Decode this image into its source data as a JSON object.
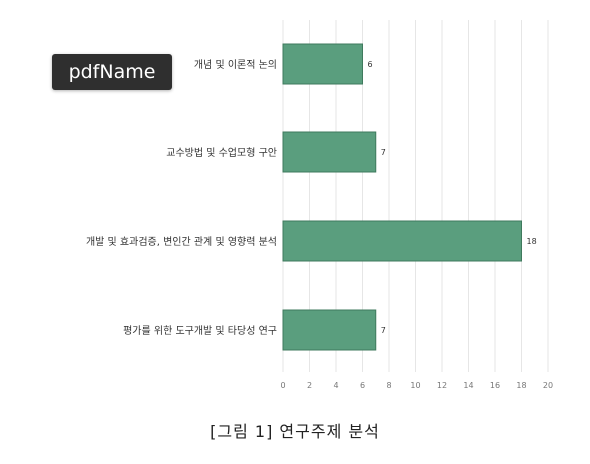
{
  "chart_data": {
    "type": "bar",
    "orientation": "horizontal",
    "categories": [
      "개념 및 이론적 논의",
      "교수방법 및 수업모형 구안",
      "개발 및 효과검증, 변인간 관계 및 영향력 분석",
      "평가를 위한 도구개발 및 타당성 연구"
    ],
    "values": [
      6,
      7,
      18,
      7
    ],
    "xlim": [
      0,
      20
    ],
    "xticks": [
      0,
      2,
      4,
      6,
      8,
      10,
      12,
      14,
      16,
      18,
      20
    ],
    "grid": true,
    "bar_color": "#5a9e7e",
    "bar_edge_color": "#3f7a5d",
    "data_labels": true
  },
  "caption": "[그림 1] 연구주제 분석",
  "tooltip": "pdfName"
}
